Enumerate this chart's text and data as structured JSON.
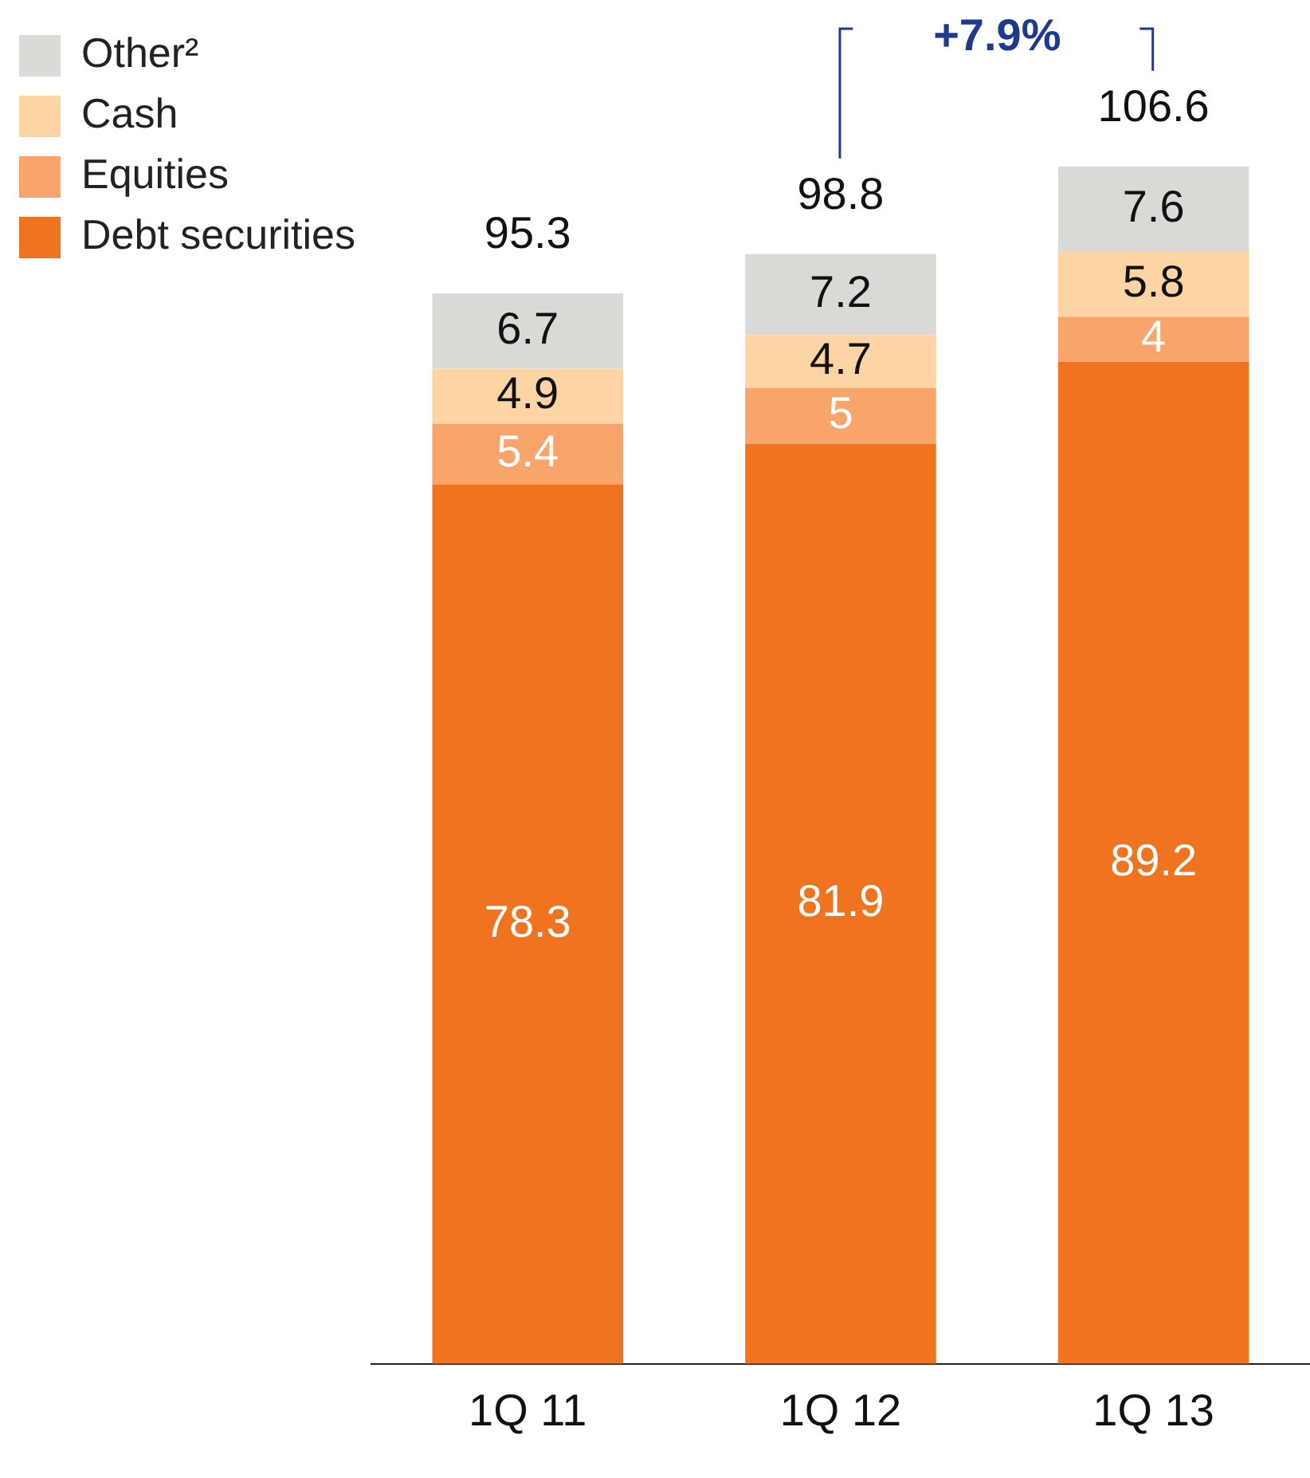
{
  "chart_data": {
    "type": "bar",
    "stacked": true,
    "categories": [
      "1Q 11",
      "1Q 12",
      "1Q 13"
    ],
    "series": [
      {
        "name": "Debt securities",
        "color": "#f07420",
        "values": [
          78.3,
          81.9,
          89.2
        ]
      },
      {
        "name": "Equities",
        "color": "#f8a46a",
        "values": [
          5.4,
          5.0,
          4.0
        ]
      },
      {
        "name": "Cash",
        "color": "#fdd5a5",
        "values": [
          4.9,
          4.7,
          5.8
        ]
      },
      {
        "name": "Other²",
        "color": "#d9d9d6",
        "values": [
          6.7,
          7.2,
          7.6
        ]
      }
    ],
    "totals": [
      "95.3",
      "98.8",
      "106.6"
    ],
    "annotations": [
      "+7.9%"
    ],
    "data_labels": true,
    "legend": "top left",
    "grid": false
  }
}
